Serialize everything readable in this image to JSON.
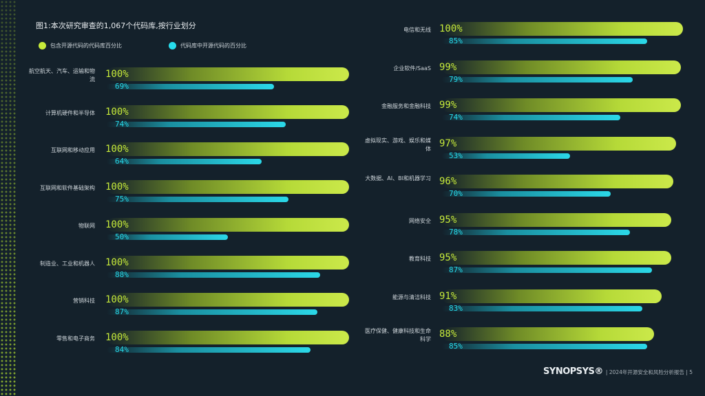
{
  "title": "图1:本次研究审查的1,067个代码库,按行业划分",
  "legend": {
    "series1": "包含开源代码的代码库百分比",
    "series2": "代码库中开源代码的百分比"
  },
  "footer": {
    "logo": "SYNOPSYS®",
    "text": "| 2024年开源安全和风险分析报告 | 5"
  },
  "colors": {
    "background": "#14212b",
    "series1": "#c6ea3a",
    "series2": "#27dcec"
  },
  "chart_data": {
    "type": "bar",
    "title": "图1:本次研究审查的1,067个代码库,按行业划分",
    "ylim": [
      0,
      100
    ],
    "series": [
      {
        "name": "包含开源代码的代码库百分比",
        "values": [
          100,
          100,
          100,
          100,
          100,
          100,
          100,
          100,
          100,
          99,
          99,
          97,
          96,
          95,
          95,
          91,
          88
        ]
      },
      {
        "name": "代码库中开源代码的百分比",
        "values": [
          69,
          74,
          64,
          75,
          50,
          88,
          87,
          84,
          85,
          79,
          74,
          53,
          70,
          78,
          87,
          83,
          85
        ]
      }
    ],
    "categories": [
      "航空航天、汽车、运输和物流",
      "计算机硬件和半导体",
      "互联网和移动应用",
      "互联网和软件基础架构",
      "物联网",
      "制造业、工业和机器人",
      "营销科技",
      "零售和电子商务",
      "电信和无线",
      "企业软件/SaaS",
      "金融服务和金融科技",
      "虚拟现实、游戏、娱乐和媒体",
      "大数据、AI、BI和机器学习",
      "网络安全",
      "教育科技",
      "能源与清洁科技",
      "医疗保健、健康科技和生命科学"
    ],
    "labels1": [
      "100%",
      "100%",
      "100%",
      "100%",
      "100%",
      "100%",
      "100%",
      "100%",
      "100%",
      "99%",
      "99%",
      "97%",
      "96%",
      "95%",
      "95%",
      "91%",
      "88%"
    ],
    "labels2": [
      "69%",
      "74%",
      "64%",
      "75%",
      "50%",
      "88%",
      "87%",
      "84%",
      "85%",
      "79%",
      "74%",
      "53%",
      "70%",
      "78%",
      "87%",
      "83%",
      "85%"
    ]
  }
}
